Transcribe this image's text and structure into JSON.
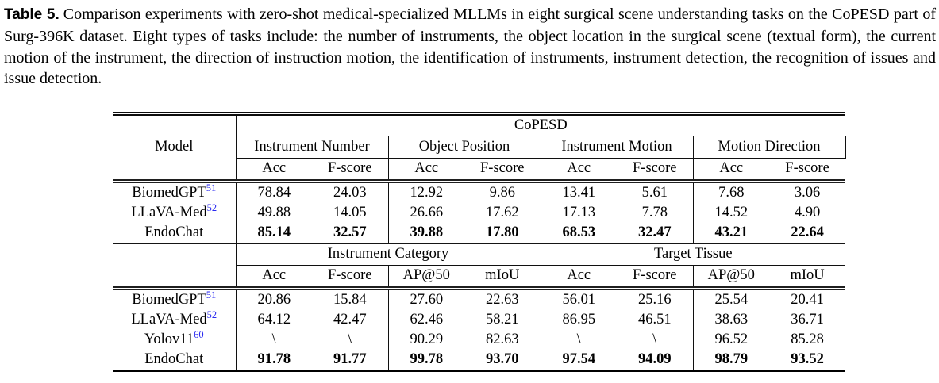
{
  "caption": {
    "label": "Table 5.",
    "text": "Comparison experiments with zero-shot medical-specialized MLLMs in eight surgical scene understanding tasks on the CoPESD part of Surg-396K dataset. Eight types of tasks include: the number of instruments, the object location in the surgical scene (textual form), the current motion of the instrument, the direction of instruction motion, the identification of instruments, instrument detection, the recognition of issues and issue detection."
  },
  "table": {
    "dataset_header": "CoPESD",
    "model_header": "Model",
    "citation_color": "#2a2af0",
    "section1": {
      "groups": [
        {
          "label": "Instrument Number",
          "sub": [
            "Acc",
            "F-score"
          ]
        },
        {
          "label": "Object Position",
          "sub": [
            "Acc",
            "F-score"
          ]
        },
        {
          "label": "Instrument Motion",
          "sub": [
            "Acc",
            "F-score"
          ]
        },
        {
          "label": "Motion Direction",
          "sub": [
            "Acc",
            "F-score"
          ]
        }
      ],
      "rows": [
        {
          "model": "BiomedGPT",
          "cite": "51",
          "bold": false,
          "values": [
            "78.84",
            "24.03",
            "12.92",
            "9.86",
            "13.41",
            "5.61",
            "7.68",
            "3.06"
          ]
        },
        {
          "model": "LLaVA-Med",
          "cite": "52",
          "bold": false,
          "values": [
            "49.88",
            "14.05",
            "26.66",
            "17.62",
            "17.13",
            "7.78",
            "14.52",
            "4.90"
          ]
        },
        {
          "model": "EndoChat",
          "cite": "",
          "bold": true,
          "values": [
            "85.14",
            "32.57",
            "39.88",
            "17.80",
            "68.53",
            "32.47",
            "43.21",
            "22.64"
          ]
        }
      ]
    },
    "section2": {
      "groups": [
        {
          "label": "Instrument Category",
          "sub": [
            "Acc",
            "F-score",
            "AP@50",
            "mIoU"
          ]
        },
        {
          "label": "Target Tissue",
          "sub": [
            "Acc",
            "F-score",
            "AP@50",
            "mIoU"
          ]
        }
      ],
      "rows": [
        {
          "model": "BiomedGPT",
          "cite": "51",
          "bold": false,
          "values": [
            "20.86",
            "15.84",
            "27.60",
            "22.63",
            "56.01",
            "25.16",
            "25.54",
            "20.41"
          ]
        },
        {
          "model": "LLaVA-Med",
          "cite": "52",
          "bold": false,
          "values": [
            "64.12",
            "42.47",
            "62.46",
            "58.21",
            "86.95",
            "46.51",
            "38.63",
            "36.71"
          ]
        },
        {
          "model": "Yolov11",
          "cite": "60",
          "bold": false,
          "values": [
            "\\",
            "\\",
            "90.29",
            "82.63",
            "\\",
            "\\",
            "96.52",
            "85.28"
          ]
        },
        {
          "model": "EndoChat",
          "cite": "",
          "bold": true,
          "values": [
            "91.78",
            "91.77",
            "99.78",
            "93.70",
            "97.54",
            "94.09",
            "98.79",
            "93.52"
          ]
        }
      ]
    }
  }
}
